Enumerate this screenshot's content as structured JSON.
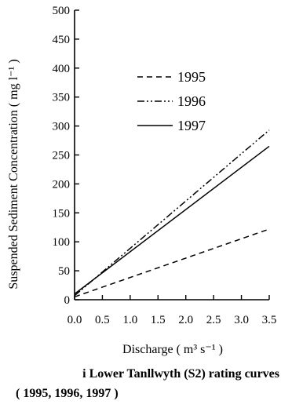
{
  "chart_data": {
    "type": "line",
    "xlabel": "Discharge ( m³ s⁻¹ )",
    "ylabel": "Suspended Sediment Concentration ( mg l⁻¹ )",
    "xlim": [
      0,
      3.5
    ],
    "ylim": [
      0,
      500
    ],
    "x_ticks": [
      "0.0",
      "0.5",
      "1.0",
      "1.5",
      "2.0",
      "2.5",
      "3.0",
      "3.5"
    ],
    "y_ticks": [
      "0",
      "50",
      "100",
      "150",
      "200",
      "250",
      "300",
      "350",
      "400",
      "450",
      "500"
    ],
    "grid": false,
    "legend_position": "top-right",
    "series": [
      {
        "name": "1995",
        "style": "dashed",
        "x": [
          0,
          3.5
        ],
        "y": [
          5,
          122
        ]
      },
      {
        "name": "1996",
        "style": "dash-dot-dot",
        "x": [
          0,
          3.5
        ],
        "y": [
          7,
          293
        ]
      },
      {
        "name": "1997",
        "style": "solid",
        "x": [
          0,
          3.5
        ],
        "y": [
          10,
          265
        ]
      }
    ]
  },
  "caption": {
    "line1": "i  Lower Tanllwyth (S2) rating curves",
    "line2": "( 1995, 1996, 1997 )"
  }
}
